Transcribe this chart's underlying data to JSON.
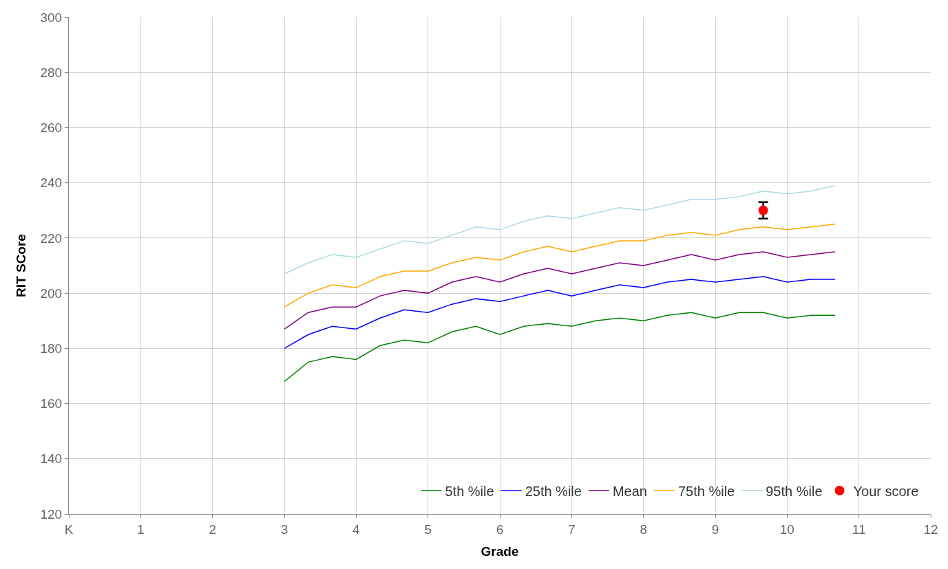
{
  "chart_data": {
    "type": "line",
    "xlabel": "Grade",
    "ylabel": "RIT SCore",
    "x": [
      3,
      3.333,
      3.667,
      4,
      4.333,
      4.667,
      5,
      5.333,
      5.667,
      6,
      6.333,
      6.667,
      7,
      7.333,
      7.667,
      8,
      8.333,
      8.667,
      9,
      9.333,
      9.667,
      10,
      10.333,
      10.667
    ],
    "series": [
      {
        "name": "5th %ile",
        "color": "#008000",
        "values": [
          168,
          175,
          177,
          176,
          181,
          183,
          182,
          186,
          188,
          185,
          188,
          189,
          188,
          190,
          191,
          190,
          192,
          193,
          191,
          193,
          193,
          191,
          192,
          192
        ]
      },
      {
        "name": "25th %ile",
        "color": "#0000ff",
        "values": [
          180,
          185,
          188,
          187,
          191,
          194,
          193,
          196,
          198,
          197,
          199,
          201,
          199,
          201,
          203,
          202,
          204,
          205,
          204,
          205,
          206,
          204,
          205,
          205
        ]
      },
      {
        "name": "Mean",
        "color": "#800080",
        "values": [
          187,
          193,
          195,
          195,
          199,
          201,
          200,
          204,
          206,
          204,
          207,
          209,
          207,
          209,
          211,
          210,
          212,
          214,
          212,
          214,
          215,
          213,
          214,
          215
        ]
      },
      {
        "name": "75th %ile",
        "color": "#ffa500",
        "values": [
          195,
          200,
          203,
          202,
          206,
          208,
          208,
          211,
          213,
          212,
          215,
          217,
          215,
          217,
          219,
          219,
          221,
          222,
          221,
          223,
          224,
          223,
          224,
          225
        ]
      },
      {
        "name": "95th %ile",
        "color": "#add8e6",
        "values": [
          207,
          211,
          214,
          213,
          216,
          219,
          218,
          221,
          224,
          223,
          226,
          228,
          227,
          229,
          231,
          230,
          232,
          234,
          234,
          235,
          237,
          236,
          237,
          239
        ]
      },
      {
        "name": "Your score",
        "color": "#ff0000",
        "type": "scatter",
        "marker": "circle",
        "x": [
          9.667
        ],
        "values": [
          230
        ],
        "errors": [
          3
        ]
      }
    ],
    "xlim": [
      0,
      12
    ],
    "xticks": [
      {
        "value": 0,
        "label": "K"
      },
      1,
      2,
      3,
      4,
      5,
      6,
      7,
      8,
      9,
      10,
      11,
      12
    ],
    "ylim": [
      120,
      300
    ],
    "yticks": [
      120,
      140,
      160,
      180,
      200,
      220,
      240,
      260,
      280,
      300
    ],
    "grid": true,
    "legend": "bottom right",
    "marker": "none"
  }
}
